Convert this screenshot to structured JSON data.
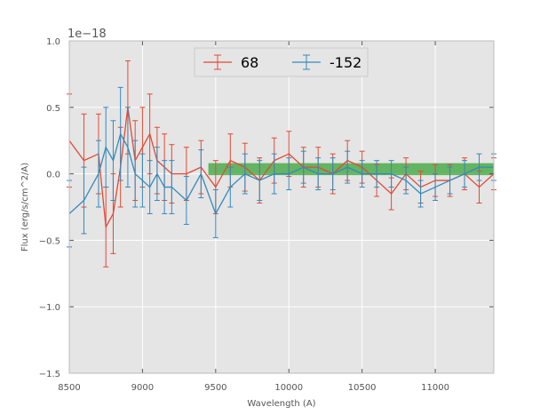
{
  "chart_data": {
    "type": "line",
    "title": "",
    "xlabel": "Wavelength (A)",
    "ylabel": "Flux (erg/s/cm^2/A)",
    "offset_label": "1e−18",
    "xlim": [
      8500,
      11400
    ],
    "ylim": [
      -1.5,
      1.0
    ],
    "y_multiplier": 1e-18,
    "xticks": [
      8500,
      9000,
      9500,
      10000,
      10500,
      11000
    ],
    "xtick_labels": [
      "8500",
      "9000",
      "9500",
      "10000",
      "10500",
      "11000"
    ],
    "yticks": [
      -1.5,
      -1.0,
      -0.5,
      0.0,
      0.5,
      1.0
    ],
    "ytick_labels": [
      "−1.5",
      "−1.0",
      "−0.5",
      "0.0",
      "0.5",
      "1.0"
    ],
    "grid": true,
    "legend_position": "top-center",
    "legend_columns": 2,
    "series": [
      {
        "name": "68",
        "color": "#e24a33",
        "errorbars": true,
        "x": [
          8500,
          8600,
          8700,
          8750,
          8800,
          8850,
          8900,
          8950,
          9000,
          9050,
          9100,
          9150,
          9200,
          9300,
          9400,
          9500,
          9600,
          9700,
          9800,
          9900,
          10000,
          10100,
          10200,
          10300,
          10400,
          10500,
          10600,
          10700,
          10800,
          10900,
          11000,
          11100,
          11200,
          11300,
          11400
        ],
        "y": [
          0.25,
          0.1,
          0.15,
          -0.4,
          -0.3,
          0.05,
          0.5,
          0.1,
          0.2,
          0.3,
          0.1,
          0.05,
          0.0,
          0.0,
          0.05,
          -0.1,
          0.1,
          0.05,
          -0.05,
          0.1,
          0.15,
          0.05,
          0.05,
          0.0,
          0.1,
          0.05,
          -0.05,
          -0.15,
          0.0,
          -0.1,
          -0.05,
          -0.05,
          0.0,
          -0.1,
          0.0
        ],
        "err": [
          0.35,
          0.35,
          0.3,
          0.3,
          0.3,
          0.3,
          0.35,
          0.3,
          0.3,
          0.3,
          0.25,
          0.25,
          0.22,
          0.2,
          0.2,
          0.2,
          0.2,
          0.18,
          0.17,
          0.17,
          0.17,
          0.15,
          0.15,
          0.15,
          0.15,
          0.12,
          0.12,
          0.12,
          0.12,
          0.12,
          0.12,
          0.12,
          0.12,
          0.12,
          0.12
        ]
      },
      {
        "name": "-152",
        "color": "#348abd",
        "errorbars": true,
        "x": [
          8500,
          8600,
          8700,
          8750,
          8800,
          8850,
          8900,
          8950,
          9000,
          9050,
          9100,
          9150,
          9200,
          9300,
          9400,
          9500,
          9600,
          9700,
          9800,
          9900,
          10000,
          10100,
          10200,
          10300,
          10400,
          10500,
          10600,
          10700,
          10800,
          10900,
          11000,
          11100,
          11200,
          11300,
          11400
        ],
        "y": [
          -0.3,
          -0.2,
          0.0,
          0.2,
          0.1,
          0.3,
          0.2,
          0.0,
          -0.05,
          -0.1,
          0.0,
          -0.1,
          -0.1,
          -0.2,
          0.0,
          -0.3,
          -0.1,
          0.0,
          -0.05,
          0.0,
          0.0,
          0.05,
          0.0,
          0.0,
          0.05,
          0.0,
          0.0,
          0.0,
          -0.05,
          -0.15,
          -0.1,
          -0.05,
          0.0,
          0.05,
          0.05
        ],
        "err": [
          0.25,
          0.25,
          0.25,
          0.3,
          0.3,
          0.35,
          0.3,
          0.25,
          0.2,
          0.2,
          0.2,
          0.2,
          0.2,
          0.18,
          0.18,
          0.18,
          0.15,
          0.15,
          0.15,
          0.15,
          0.12,
          0.12,
          0.12,
          0.12,
          0.12,
          0.1,
          0.1,
          0.1,
          0.1,
          0.1,
          0.1,
          0.1,
          0.1,
          0.1,
          0.1
        ]
      }
    ],
    "band": {
      "color": "#2ca02c",
      "x": [
        9450,
        11400
      ],
      "y": [
        -0.01,
        0.08
      ]
    }
  }
}
